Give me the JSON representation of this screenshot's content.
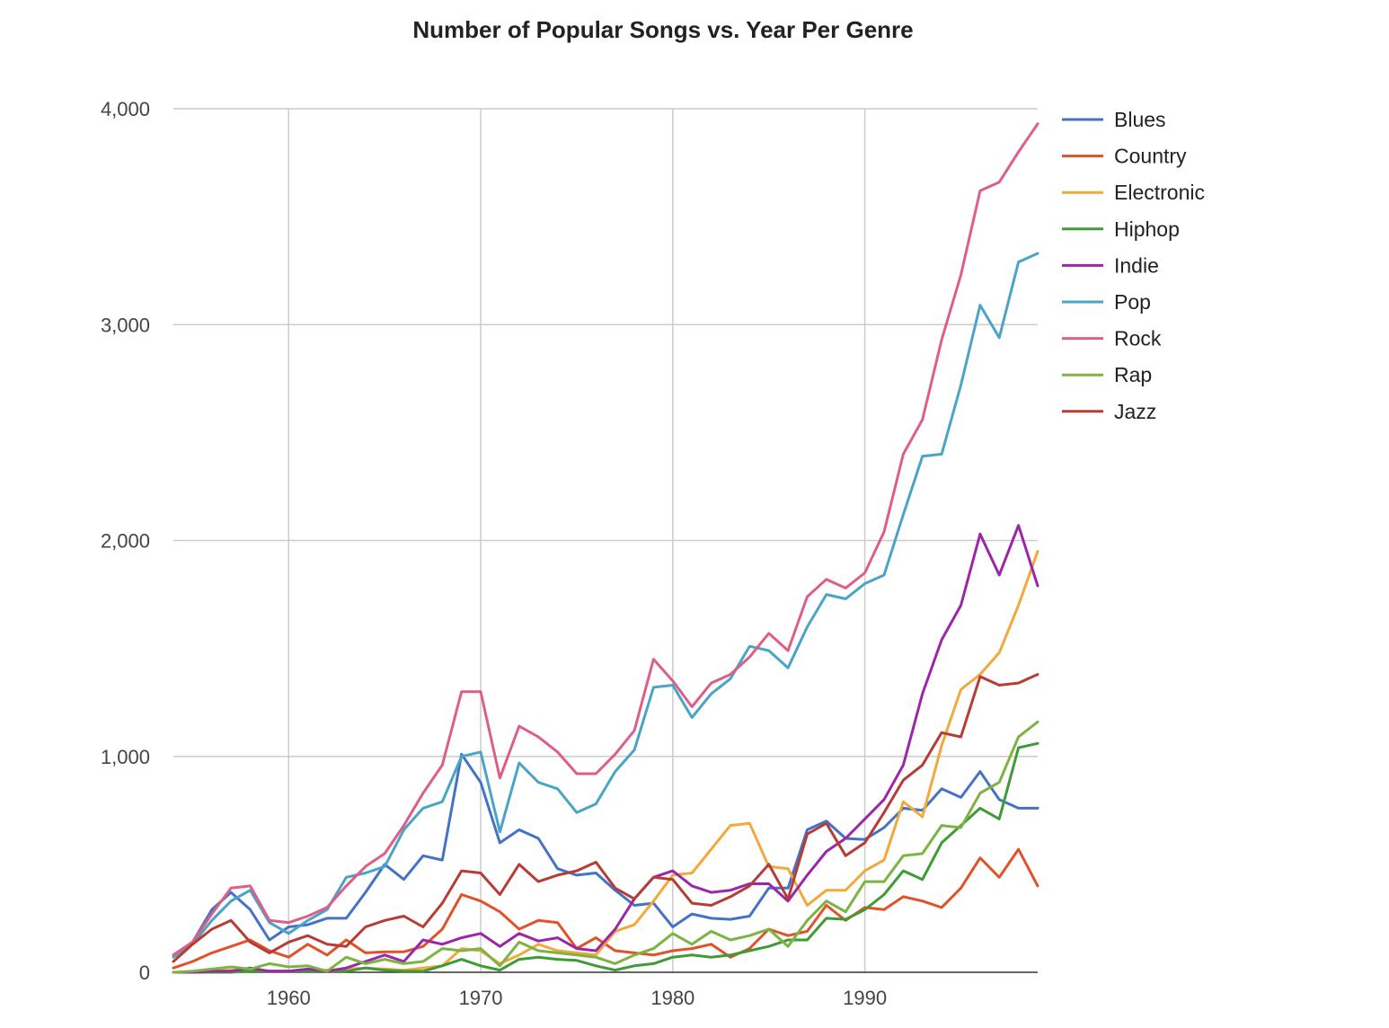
{
  "chart_data": {
    "type": "line",
    "title": "Number of Popular Songs vs. Year Per Genre",
    "xlabel": "",
    "ylabel": "",
    "xlim": [
      1954,
      1999
    ],
    "ylim": [
      0,
      4000
    ],
    "x_ticks": [
      1960,
      1970,
      1980,
      1990
    ],
    "y_ticks": [
      0,
      1000,
      2000,
      3000,
      4000
    ],
    "y_tick_labels": [
      "0",
      "1,000",
      "2,000",
      "3,000",
      "4,000"
    ],
    "grid": true,
    "legend": "right",
    "x": [
      1954,
      1955,
      1956,
      1957,
      1958,
      1959,
      1960,
      1961,
      1962,
      1963,
      1964,
      1965,
      1966,
      1967,
      1968,
      1969,
      1970,
      1971,
      1972,
      1973,
      1974,
      1975,
      1976,
      1977,
      1978,
      1979,
      1980,
      1981,
      1982,
      1983,
      1984,
      1985,
      1986,
      1987,
      1988,
      1989,
      1990,
      1991,
      1992,
      1993,
      1994,
      1995,
      1996,
      1997,
      1998,
      1999
    ],
    "series": [
      {
        "name": "Blues",
        "color": "#4472c4",
        "values": [
          80,
          140,
          290,
          370,
          290,
          150,
          210,
          220,
          250,
          250,
          370,
          500,
          430,
          540,
          520,
          1010,
          880,
          600,
          660,
          620,
          480,
          450,
          460,
          380,
          310,
          320,
          210,
          270,
          250,
          245,
          260,
          390,
          390,
          660,
          700,
          620,
          615,
          670,
          760,
          750,
          850,
          810,
          930,
          800,
          760,
          760
        ]
      },
      {
        "name": "Country",
        "color": "#e0522a",
        "values": [
          20,
          50,
          90,
          120,
          150,
          100,
          70,
          130,
          80,
          150,
          90,
          95,
          95,
          120,
          200,
          360,
          330,
          280,
          200,
          240,
          230,
          110,
          160,
          100,
          90,
          80,
          100,
          110,
          130,
          70,
          110,
          200,
          170,
          190,
          310,
          240,
          300,
          290,
          350,
          330,
          300,
          390,
          530,
          440,
          570,
          400
        ]
      },
      {
        "name": "Electronic",
        "color": "#f2a93b",
        "values": [
          0,
          0,
          5,
          10,
          10,
          5,
          5,
          10,
          10,
          15,
          20,
          15,
          10,
          20,
          30,
          110,
          100,
          40,
          80,
          130,
          100,
          90,
          80,
          190,
          220,
          330,
          450,
          460,
          570,
          680,
          690,
          490,
          480,
          310,
          380,
          380,
          470,
          520,
          790,
          720,
          1050,
          1310,
          1380,
          1480,
          1700,
          1950
        ]
      },
      {
        "name": "Hiphop",
        "color": "#3f9b35",
        "values": [
          0,
          0,
          0,
          0,
          5,
          5,
          5,
          5,
          5,
          5,
          20,
          10,
          5,
          5,
          30,
          60,
          30,
          10,
          60,
          70,
          60,
          55,
          30,
          10,
          30,
          40,
          70,
          80,
          70,
          80,
          100,
          120,
          150,
          150,
          250,
          245,
          290,
          360,
          470,
          430,
          600,
          680,
          760,
          710,
          1040,
          1060
        ]
      },
      {
        "name": "Indie",
        "color": "#9b27a8",
        "values": [
          0,
          0,
          5,
          5,
          20,
          5,
          5,
          15,
          5,
          20,
          50,
          80,
          50,
          150,
          130,
          160,
          180,
          120,
          180,
          145,
          160,
          110,
          100,
          200,
          340,
          440,
          470,
          400,
          370,
          380,
          410,
          410,
          330,
          450,
          560,
          620,
          710,
          800,
          960,
          1290,
          1540,
          1700,
          2030,
          1840,
          2070,
          1790
        ]
      },
      {
        "name": "Pop",
        "color": "#49a4c8",
        "values": [
          70,
          130,
          240,
          330,
          380,
          230,
          180,
          240,
          290,
          440,
          460,
          490,
          660,
          760,
          790,
          1000,
          1020,
          650,
          970,
          880,
          850,
          740,
          780,
          930,
          1030,
          1320,
          1330,
          1180,
          1290,
          1360,
          1510,
          1490,
          1410,
          1600,
          1750,
          1730,
          1800,
          1840,
          2120,
          2390,
          2400,
          2720,
          3090,
          2940,
          3290,
          3330
        ]
      },
      {
        "name": "Rock",
        "color": "#dd5f87",
        "values": [
          80,
          140,
          270,
          390,
          400,
          240,
          230,
          260,
          300,
          400,
          490,
          550,
          680,
          830,
          960,
          1300,
          1300,
          900,
          1140,
          1090,
          1020,
          920,
          920,
          1010,
          1120,
          1450,
          1350,
          1230,
          1340,
          1380,
          1460,
          1570,
          1490,
          1740,
          1820,
          1780,
          1850,
          2040,
          2400,
          2560,
          2930,
          3230,
          3620,
          3660,
          3800,
          3930
        ]
      },
      {
        "name": "Rap",
        "color": "#7cb342",
        "values": [
          0,
          5,
          15,
          25,
          15,
          40,
          25,
          30,
          5,
          70,
          40,
          60,
          40,
          50,
          110,
          100,
          110,
          30,
          140,
          100,
          90,
          80,
          70,
          40,
          80,
          110,
          180,
          130,
          190,
          150,
          170,
          200,
          120,
          240,
          330,
          280,
          420,
          420,
          540,
          550,
          680,
          670,
          830,
          880,
          1090,
          1160
        ]
      },
      {
        "name": "Jazz",
        "color": "#b53d35",
        "values": [
          50,
          130,
          200,
          240,
          140,
          90,
          140,
          170,
          130,
          120,
          210,
          240,
          260,
          210,
          320,
          470,
          460,
          360,
          500,
          420,
          450,
          470,
          510,
          390,
          340,
          440,
          430,
          320,
          310,
          350,
          400,
          500,
          340,
          640,
          690,
          540,
          600,
          740,
          890,
          960,
          1110,
          1090,
          1370,
          1330,
          1340,
          1380
        ]
      }
    ]
  }
}
